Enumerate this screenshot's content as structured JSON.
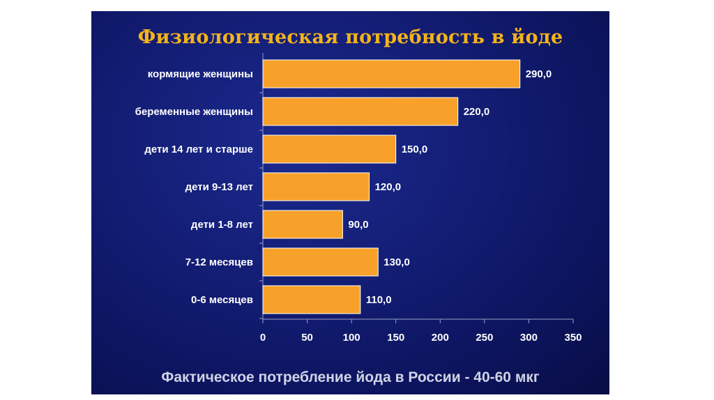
{
  "slide": {
    "title": "Физиологическая потребность в йоде",
    "footer": "Фактическое потребление йода в России - 40-60 мкг"
  },
  "colors": {
    "background": "#141f78",
    "title": "#f3b31b",
    "bar_fill": "#f7a12a",
    "bar_stroke": "#ffffff",
    "text": "#ffffff"
  },
  "chart_data": {
    "type": "bar",
    "orientation": "horizontal",
    "categories": [
      "кормящие женщины",
      "беременные женщины",
      "дети 14 лет и старше",
      "дети 9-13 лет",
      "дети 1-8 лет",
      "7-12 месяцев",
      "0-6 месяцев"
    ],
    "values": [
      290,
      220,
      150,
      120,
      90,
      130,
      110
    ],
    "value_labels": [
      "290,0",
      "220,0",
      "150,0",
      "120,0",
      "90,0",
      "130,0",
      "110,0"
    ],
    "xlim": [
      0,
      350
    ],
    "xticks": [
      0,
      50,
      100,
      150,
      200,
      250,
      300,
      350
    ],
    "xtick_labels": [
      "0",
      "50",
      "100",
      "150",
      "200",
      "250",
      "300",
      "350"
    ],
    "title": "Физиологическая потребность в йоде",
    "xlabel": "",
    "ylabel": "",
    "grid": false,
    "legend": "none"
  }
}
